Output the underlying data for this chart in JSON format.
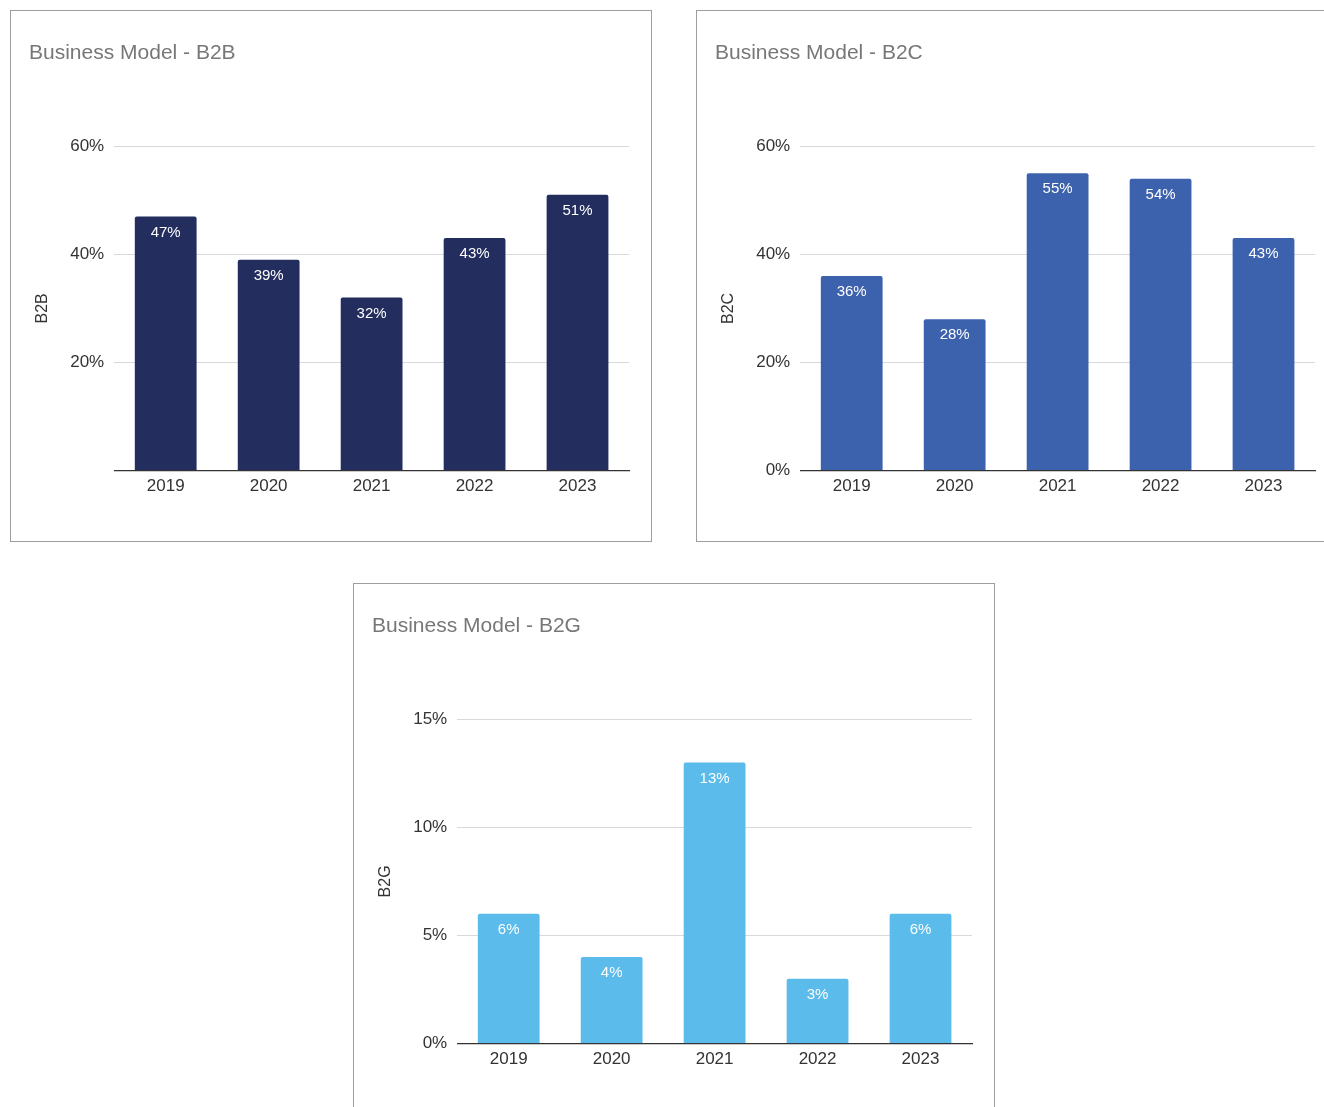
{
  "chart_data": [
    {
      "type": "bar",
      "title": "Business Model - B2B",
      "ylabel": "B2B",
      "categories": [
        "2019",
        "2020",
        "2021",
        "2022",
        "2023"
      ],
      "values": [
        47,
        39,
        32,
        43,
        51
      ],
      "value_labels": [
        "47%",
        "39%",
        "32%",
        "43%",
        "51%"
      ],
      "color": "#232d5e",
      "ylim": [
        0,
        60
      ],
      "yticks": [
        {
          "value": 0,
          "label": null
        },
        {
          "value": 20,
          "label": "20%"
        },
        {
          "value": 40,
          "label": "40%"
        },
        {
          "value": 60,
          "label": "60%"
        }
      ],
      "grid": "y"
    },
    {
      "type": "bar",
      "title": "Business Model - B2C",
      "ylabel": "B2C",
      "categories": [
        "2019",
        "2020",
        "2021",
        "2022",
        "2023"
      ],
      "values": [
        36,
        28,
        55,
        54,
        43
      ],
      "value_labels": [
        "36%",
        "28%",
        "55%",
        "54%",
        "43%"
      ],
      "color": "#3c61ad",
      "ylim": [
        0,
        60
      ],
      "yticks": [
        {
          "value": 0,
          "label": "0%"
        },
        {
          "value": 20,
          "label": "20%"
        },
        {
          "value": 40,
          "label": "40%"
        },
        {
          "value": 60,
          "label": "60%"
        }
      ],
      "grid": "y"
    },
    {
      "type": "bar",
      "title": "Business Model - B2G",
      "ylabel": "B2G",
      "categories": [
        "2019",
        "2020",
        "2021",
        "2022",
        "2023"
      ],
      "values": [
        6,
        4,
        13,
        3,
        6
      ],
      "value_labels": [
        "6%",
        "4%",
        "13%",
        "3%",
        "6%"
      ],
      "color": "#5bbbea",
      "ylim": [
        0,
        15
      ],
      "yticks": [
        {
          "value": 0,
          "label": "0%"
        },
        {
          "value": 5,
          "label": "5%"
        },
        {
          "value": 10,
          "label": "10%"
        },
        {
          "value": 15,
          "label": "15%"
        }
      ],
      "grid": "y"
    }
  ]
}
